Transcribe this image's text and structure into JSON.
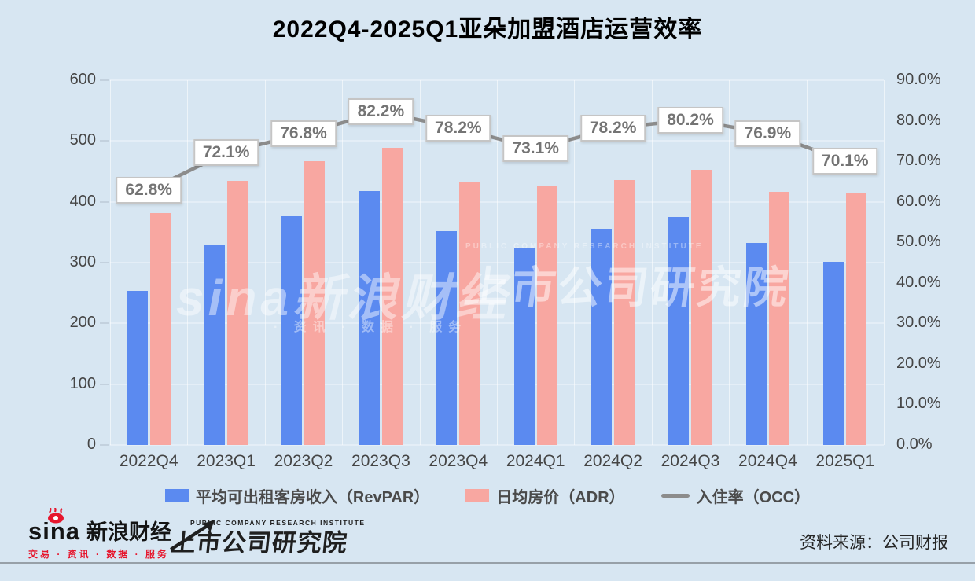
{
  "chart_data": {
    "type": "bar",
    "subtype": "grouped-bar-with-line",
    "title": "2022Q4-2025Q1亚朵加盟酒店运营效率",
    "categories": [
      "2022Q4",
      "2023Q1",
      "2023Q2",
      "2023Q3",
      "2023Q4",
      "2024Q1",
      "2024Q2",
      "2024Q3",
      "2024Q4",
      "2025Q1"
    ],
    "series": [
      {
        "name": "平均可出租客房收入（RevPAR）",
        "type": "bar",
        "axis": "left",
        "color": "#5b8af0",
        "values": [
          253,
          330,
          376,
          418,
          352,
          323,
          355,
          375,
          332,
          301
        ]
      },
      {
        "name": "日均房价（ADR）",
        "type": "bar",
        "axis": "left",
        "color": "#f8a7a1",
        "values": [
          381,
          435,
          467,
          489,
          432,
          426,
          436,
          452,
          417,
          414
        ]
      },
      {
        "name": "入住率（OCC）",
        "type": "line",
        "axis": "right",
        "color": "#8c8c8c",
        "values": [
          62.8,
          72.1,
          76.8,
          82.2,
          78.2,
          73.1,
          78.2,
          80.2,
          76.9,
          70.1
        ],
        "point_labels": [
          "62.8%",
          "72.1%",
          "76.8%",
          "82.2%",
          "78.2%",
          "73.1%",
          "78.2%",
          "80.2%",
          "76.9%",
          "70.1%"
        ]
      }
    ],
    "left_axis": {
      "min": 0,
      "max": 600,
      "ticks": [
        "600",
        "500",
        "400",
        "300",
        "200",
        "100",
        "0"
      ]
    },
    "right_axis": {
      "min": 0,
      "max": 90,
      "ticks": [
        "90.0%",
        "80.0%",
        "70.0%",
        "60.0%",
        "50.0%",
        "40.0%",
        "30.0%",
        "20.0%",
        "10.0%",
        "0.0%"
      ]
    },
    "grid": true,
    "legend_position": "bottom"
  },
  "watermark": {
    "left_main": "sina新浪财经",
    "left_sub": "· 资讯 · 数据 · 服务",
    "right_en": "PUBLIC COMPANY RESEARCH INSTITUTE",
    "right_main": "上市公司研究院"
  },
  "footer": {
    "sina_brand": "sina",
    "sina_cn": "新浪财经",
    "sina_tagline": "交易 · 资讯 · 数据 · 服务",
    "institute_en": "PUBLIC COMPANY RESEARCH INSTITUTE",
    "institute_cn": "上市公司研究院",
    "source": "资料来源：公司财报"
  },
  "colors": {
    "background": "#d7e6f2",
    "revpar_bar": "#5b8af0",
    "adr_bar": "#f8a7a1",
    "occ_line": "#8c8c8c",
    "occ_label_text": "#747474",
    "axis_text": "#454545",
    "sina_red": "#e6162d"
  }
}
